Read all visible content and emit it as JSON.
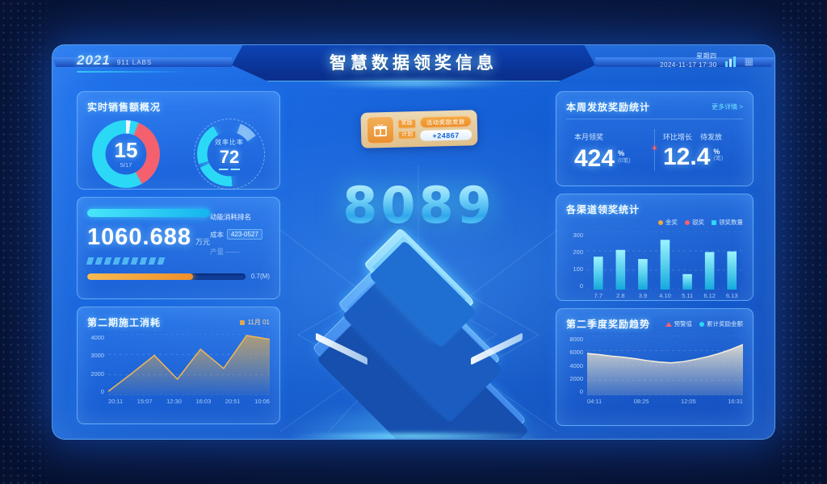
{
  "theme": {
    "accent": "#2bd9f7",
    "red": "#f4606e",
    "orange": "#f5a63b",
    "gold": "#e0a84f",
    "panel_border": "#7cc4ff"
  },
  "header": {
    "logo": "2021",
    "logo_sub": "911 LABS",
    "title": "智慧数据领奖信息",
    "weekday": "星期四",
    "datetime": "2024-11-17 17:30"
  },
  "left": {
    "overview": {
      "title": "实时销售额概况",
      "gauge1": {
        "value": "15",
        "sub": "5/17"
      },
      "gauge2": {
        "label": "效率比率",
        "value": "72"
      }
    },
    "consumption": {
      "value": "1060.688",
      "unit": "万元",
      "rows": [
        {
          "label": "动能消耗排名"
        },
        {
          "label": "成本",
          "chip": "423-0527"
        },
        {
          "label": "产量 ——"
        }
      ],
      "progress_pct": 67,
      "progress_label": "0.7(M)"
    },
    "trend": {
      "title": "第二期施工消耗",
      "legend": "11月 01"
    }
  },
  "center": {
    "badge": {
      "chip1": "奖励",
      "chip2": "计划",
      "pill": "活动奖励发放",
      "counter": "+24867"
    },
    "big_number": "8089"
  },
  "right": {
    "stats": {
      "title": "本周发放奖励统计",
      "more": "更多详情 >",
      "stat1": {
        "label": "本月领奖",
        "value": "424",
        "unit": "%",
        "sub": "(0笔)"
      },
      "stat2": {
        "label1": "环比增长",
        "label2": "待发放",
        "value": "12.4",
        "unit": "%",
        "sub": "(笔)"
      }
    },
    "channels": {
      "title": "各渠道领奖统计",
      "legend": [
        {
          "color": "#f5a63b",
          "label": "金奖"
        },
        {
          "color": "#f4606e",
          "label": "银奖"
        },
        {
          "color": "#2bd9f7",
          "label": "领奖数量"
        }
      ]
    },
    "quarter": {
      "title": "第二季度奖励趋势",
      "legend": [
        {
          "color": "#f4606e",
          "label": "预警值"
        },
        {
          "color": "#2bd9f7",
          "label": "累计奖励金额"
        }
      ]
    }
  },
  "chart_data": [
    {
      "id": "left-trend",
      "type": "line",
      "title": "第二期施工消耗",
      "x": [
        "20:11",
        "15:07",
        "12:30",
        "16:03",
        "20:51",
        "10:06"
      ],
      "values": [
        250,
        1400,
        2600,
        1050,
        3000,
        1750,
        3900,
        3650
      ],
      "ymax": 4000,
      "yticks": [
        "4000",
        "3000",
        "2000",
        "0"
      ],
      "color": "#e8b45c",
      "grid": true,
      "legend_position": "top-right"
    },
    {
      "id": "channels-bar",
      "type": "bar",
      "title": "各渠道领奖统计",
      "categories": [
        "7.7",
        "2.8",
        "3.9",
        "4.10",
        "5.11",
        "6.12",
        "6.13"
      ],
      "values": [
        170,
        205,
        158,
        257,
        80,
        194,
        197
      ],
      "ymax": 300,
      "yticks": [
        "300",
        "200",
        "100",
        "0"
      ],
      "color": "#2bd9f7",
      "grid": true,
      "legend_position": "top-right"
    },
    {
      "id": "quarter-area",
      "type": "area",
      "title": "第二季度奖励趋势",
      "x": [
        "04:11",
        "08:25",
        "12:05",
        "16:31"
      ],
      "values": [
        5600,
        5450,
        5250,
        5100,
        4900,
        4650,
        4450,
        4350,
        4500,
        4800,
        5150,
        5600,
        6150,
        6800
      ],
      "ymax": 8000,
      "yticks": [
        "8000",
        "6000",
        "4000",
        "2000",
        "0"
      ],
      "color": "#f3ecd9",
      "grid": true,
      "legend_position": "top-right"
    }
  ]
}
